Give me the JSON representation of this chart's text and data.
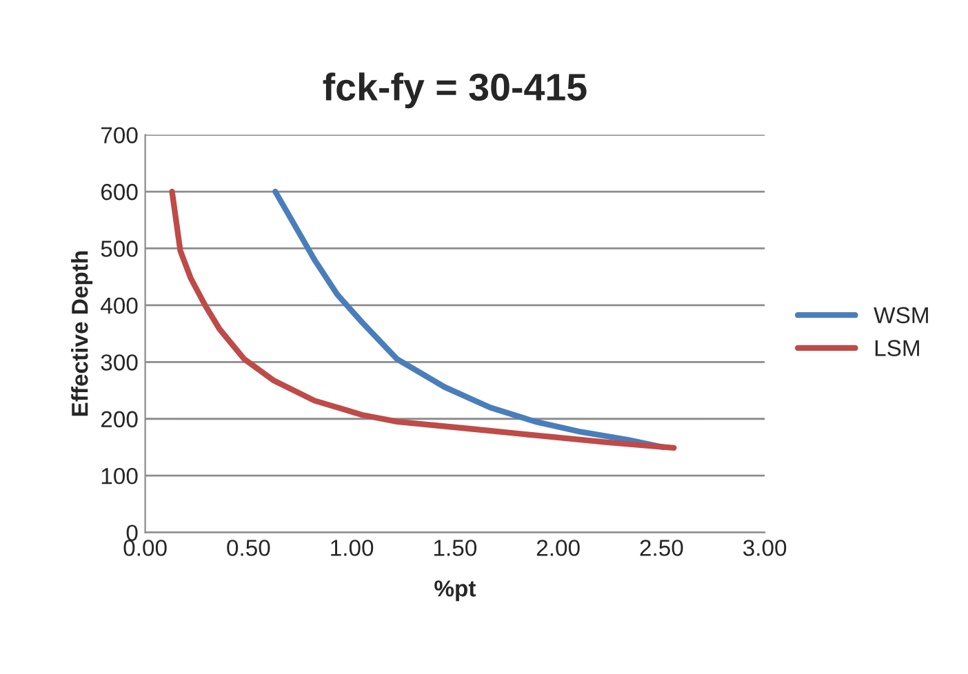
{
  "chart_data": {
    "type": "line",
    "title": "fck-fy = 30-415",
    "xlabel": "%pt",
    "ylabel": "Effective Depth",
    "xlim": [
      0,
      3
    ],
    "xticks": [
      {
        "value": 0,
        "label": "0.00"
      },
      {
        "value": 0.5,
        "label": "0.50"
      },
      {
        "value": 1,
        "label": "1.00"
      },
      {
        "value": 1.5,
        "label": "1.50"
      },
      {
        "value": 2,
        "label": "2.00"
      },
      {
        "value": 2.5,
        "label": "2.50"
      },
      {
        "value": 3,
        "label": "3.00"
      }
    ],
    "ylim": [
      0,
      700
    ],
    "yticks": [
      0,
      100,
      200,
      300,
      400,
      500,
      600,
      700
    ],
    "grid": "y",
    "legend": "right",
    "marker": "none",
    "line_style": "solid",
    "series": [
      {
        "name": "WSM",
        "color": "#4a7ebb",
        "x": [
          0.63,
          0.73,
          0.82,
          0.93,
          1.05,
          1.22,
          1.45,
          1.67,
          1.89,
          2.11,
          2.34,
          2.51
        ],
        "values": [
          600,
          537,
          480,
          419,
          370,
          305,
          256,
          220,
          195,
          177,
          163,
          150
        ]
      },
      {
        "name": "LSM",
        "color": "#be4b48",
        "x": [
          0.13,
          0.17,
          0.22,
          0.29,
          0.36,
          0.48,
          0.62,
          0.82,
          1.05,
          1.22,
          1.56,
          1.89,
          2.23,
          2.56
        ],
        "values": [
          600,
          496,
          448,
          400,
          358,
          305,
          268,
          232,
          207,
          195,
          183,
          171,
          159,
          149
        ]
      }
    ]
  }
}
